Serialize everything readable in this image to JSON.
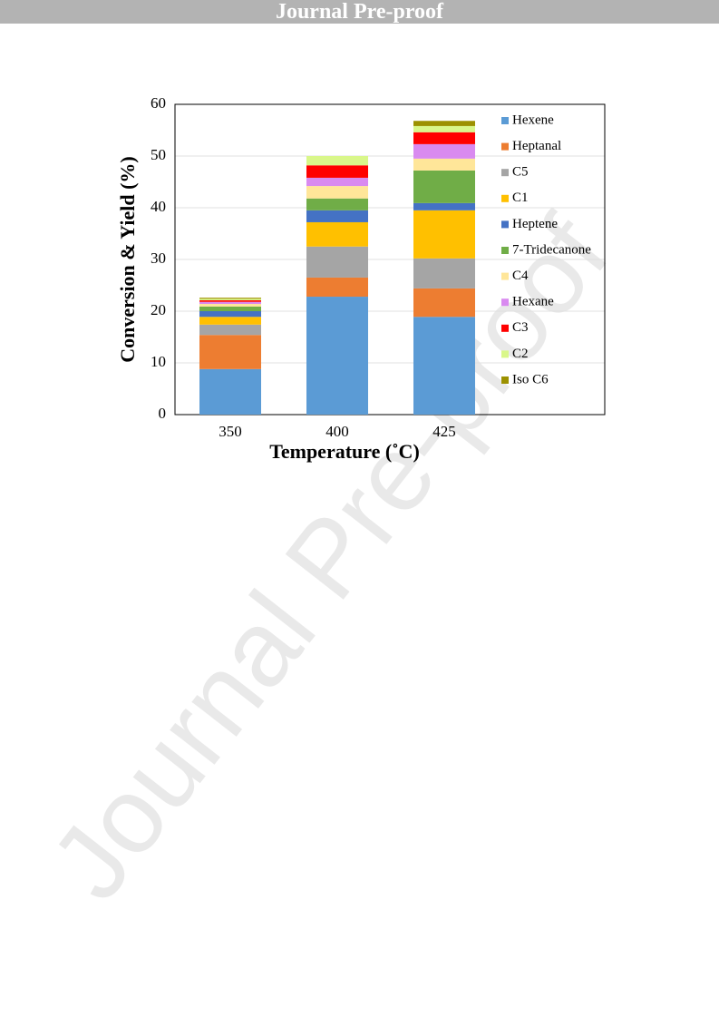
{
  "header": "Journal Pre-proof",
  "watermark": "Journal Pre-proof",
  "chart_data": {
    "type": "stacked_bar",
    "xlabel": "Temperature (˚C)",
    "ylabel": "Conversion & Yield (%)",
    "categories": [
      "350",
      "400",
      "425"
    ],
    "ylim": [
      0,
      60
    ],
    "yticks": [
      0,
      10,
      20,
      30,
      40,
      50,
      60
    ],
    "grid": true,
    "legend": "right",
    "series": [
      {
        "name": "Hexene",
        "color": "#5b9bd5",
        "values": [
          8.8,
          22.8,
          18.9
        ]
      },
      {
        "name": "Heptanal",
        "color": "#ed7d31",
        "values": [
          6.6,
          3.7,
          5.5
        ]
      },
      {
        "name": "C5",
        "color": "#a5a5a5",
        "values": [
          2.0,
          6.0,
          5.8
        ]
      },
      {
        "name": "C1",
        "color": "#ffc000",
        "values": [
          1.5,
          4.7,
          9.3
        ]
      },
      {
        "name": "Heptene",
        "color": "#4472c4",
        "values": [
          1.1,
          2.3,
          1.4
        ]
      },
      {
        "name": "7-Tridecanone",
        "color": "#70ad47",
        "values": [
          0.9,
          2.3,
          6.3
        ]
      },
      {
        "name": "C4",
        "color": "#ffe699",
        "values": [
          0.5,
          2.4,
          2.3
        ]
      },
      {
        "name": "Hexane",
        "color": "#d98af0",
        "values": [
          0.4,
          1.6,
          2.8
        ]
      },
      {
        "name": "C3",
        "color": "#ff0000",
        "values": [
          0.3,
          2.4,
          2.3
        ]
      },
      {
        "name": "C2",
        "color": "#d9f78a",
        "values": [
          0.3,
          1.8,
          1.2
        ]
      },
      {
        "name": "Iso C6",
        "color": "#9c9100",
        "values": [
          0.2,
          0,
          1.0
        ]
      }
    ]
  }
}
